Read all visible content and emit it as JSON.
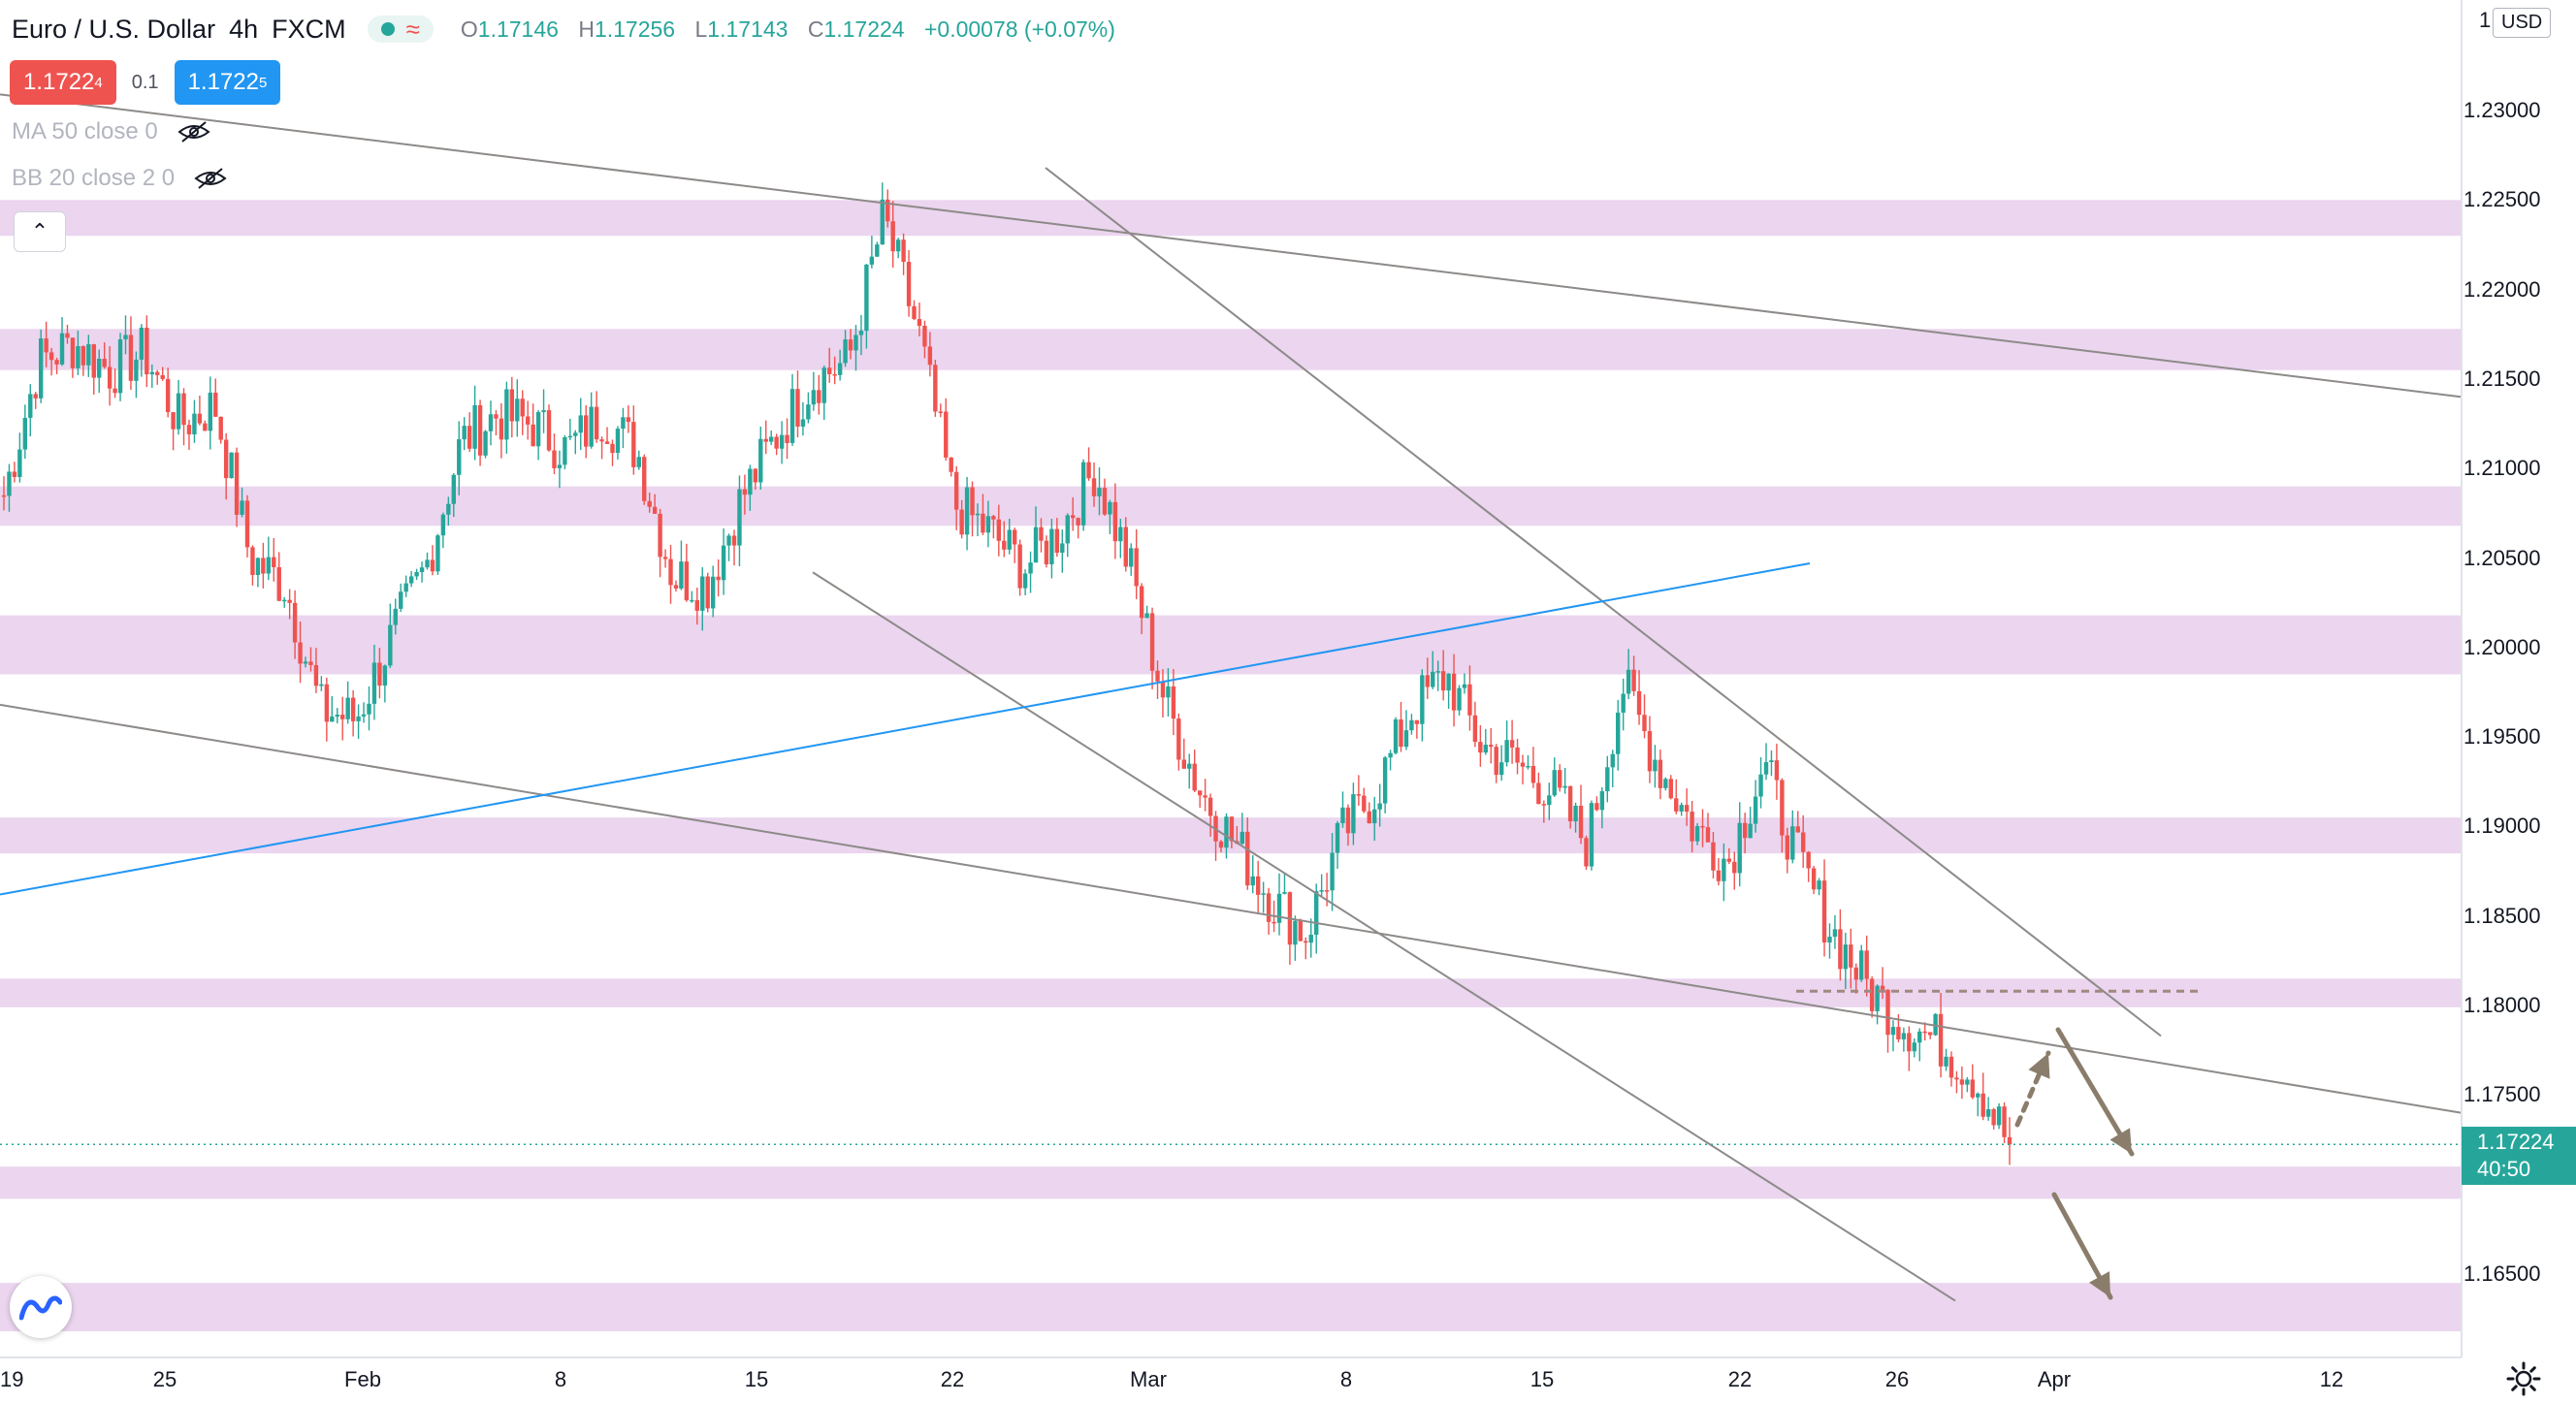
{
  "header": {
    "symbol": "Euro / U.S. Dollar",
    "interval": "4h",
    "exchange": "FXCM",
    "open_label": "O",
    "open": "1.17146",
    "high_label": "H",
    "high": "1.17256",
    "low_label": "L",
    "low": "1.17143",
    "close_label": "C",
    "close": "1.17224",
    "change": "+0.00078 (+0.07%)"
  },
  "trade": {
    "sell_price": "1.1722",
    "sell_sup": "4",
    "spread": "0.1",
    "buy_price": "1.1722",
    "buy_sup": "5"
  },
  "indicators": [
    {
      "label": "MA 50 close 0"
    },
    {
      "label": "BB 20 close 2 0"
    }
  ],
  "price_axis": {
    "currency": "USD",
    "top_label_partial": "1",
    "current_price": "1.17224",
    "countdown": "40:50",
    "ticks": [
      "1.23000",
      "1.22500",
      "1.22000",
      "1.21500",
      "1.21000",
      "1.20500",
      "1.20000",
      "1.19500",
      "1.19000",
      "1.18500",
      "1.18000",
      "1.17500",
      "1.16500"
    ]
  },
  "time_axis": {
    "labels": [
      "19",
      "25",
      "Feb",
      "8",
      "15",
      "22",
      "Mar",
      "8",
      "15",
      "22",
      "26",
      "Apr",
      "12"
    ]
  },
  "colors": {
    "up": "#26a69a",
    "down": "#ef5350",
    "zone": "#e1bee7",
    "trend_gray": "#8d8a88",
    "trend_blue": "#2196f3",
    "arrow": "#8b7d6b",
    "dashed_level": "#a1887f"
  },
  "chart_data": {
    "type": "candlestick",
    "symbol": "EURUSD",
    "timeframe": "4h",
    "y_range": [
      1.1615,
      1.234
    ],
    "y_ticks": [
      1.165,
      1.175,
      1.18,
      1.185,
      1.19,
      1.195,
      1.2,
      1.205,
      1.21,
      1.215,
      1.22,
      1.225,
      1.23
    ],
    "zones": [
      [
        1.223,
        1.225
      ],
      [
        1.2155,
        1.2178
      ],
      [
        1.2068,
        1.209
      ],
      [
        1.1985,
        1.2018
      ],
      [
        1.1885,
        1.1905
      ],
      [
        1.1799,
        1.1815
      ],
      [
        1.1692,
        1.171
      ],
      [
        1.1618,
        1.1645
      ]
    ],
    "dashed_level": 1.1808,
    "current_price": 1.17224,
    "anchors": [
      [
        "19",
        1.2085
      ],
      [
        "21",
        1.216
      ],
      [
        "22",
        1.217
      ],
      [
        "25",
        1.2155
      ],
      [
        "26",
        1.2165
      ],
      [
        "28",
        1.2125
      ],
      [
        "Feb",
        1.2135
      ],
      [
        "2",
        1.205
      ],
      [
        "3",
        1.2035
      ],
      [
        "5",
        1.1965
      ],
      [
        "6",
        1.196
      ],
      [
        "7",
        1.2005
      ],
      [
        "8",
        1.2045
      ],
      [
        "9",
        1.2115
      ],
      [
        "11",
        1.213
      ],
      [
        "12",
        1.2125
      ],
      [
        "14",
        1.211
      ],
      [
        "15",
        1.213
      ],
      [
        "16",
        1.211
      ],
      [
        "17",
        1.204
      ],
      [
        "18",
        1.2035
      ],
      [
        "19",
        1.2085
      ],
      [
        "21",
        1.212
      ],
      [
        "22",
        1.215
      ],
      [
        "24",
        1.216
      ],
      [
        "25",
        1.224
      ],
      [
        "26",
        1.2175
      ],
      [
        "27",
        1.208
      ],
      [
        "28",
        1.2065
      ],
      [
        "Mar",
        1.2045
      ],
      [
        "2",
        1.2065
      ],
      [
        "3",
        1.21
      ],
      [
        "4",
        1.2045
      ],
      [
        "5",
        1.197
      ],
      [
        "6",
        1.192
      ],
      [
        "7",
        1.189
      ],
      [
        "8",
        1.186
      ],
      [
        "9",
        1.184
      ],
      [
        "10",
        1.1895
      ],
      [
        "11",
        1.192
      ],
      [
        "12",
        1.1965
      ],
      [
        "13",
        1.1985
      ],
      [
        "14",
        1.1945
      ],
      [
        "15",
        1.1935
      ],
      [
        "16",
        1.192
      ],
      [
        "17",
        1.189
      ],
      [
        "18",
        1.198
      ],
      [
        "19",
        1.1935
      ],
      [
        "20",
        1.19
      ],
      [
        "21",
        1.188
      ],
      [
        "22",
        1.1935
      ],
      [
        "23",
        1.188
      ],
      [
        "24",
        1.184
      ],
      [
        "25",
        1.181
      ],
      [
        "26",
        1.179
      ],
      [
        "27",
        1.178
      ],
      [
        "28",
        1.176
      ],
      [
        "29",
        1.1722
      ]
    ]
  }
}
